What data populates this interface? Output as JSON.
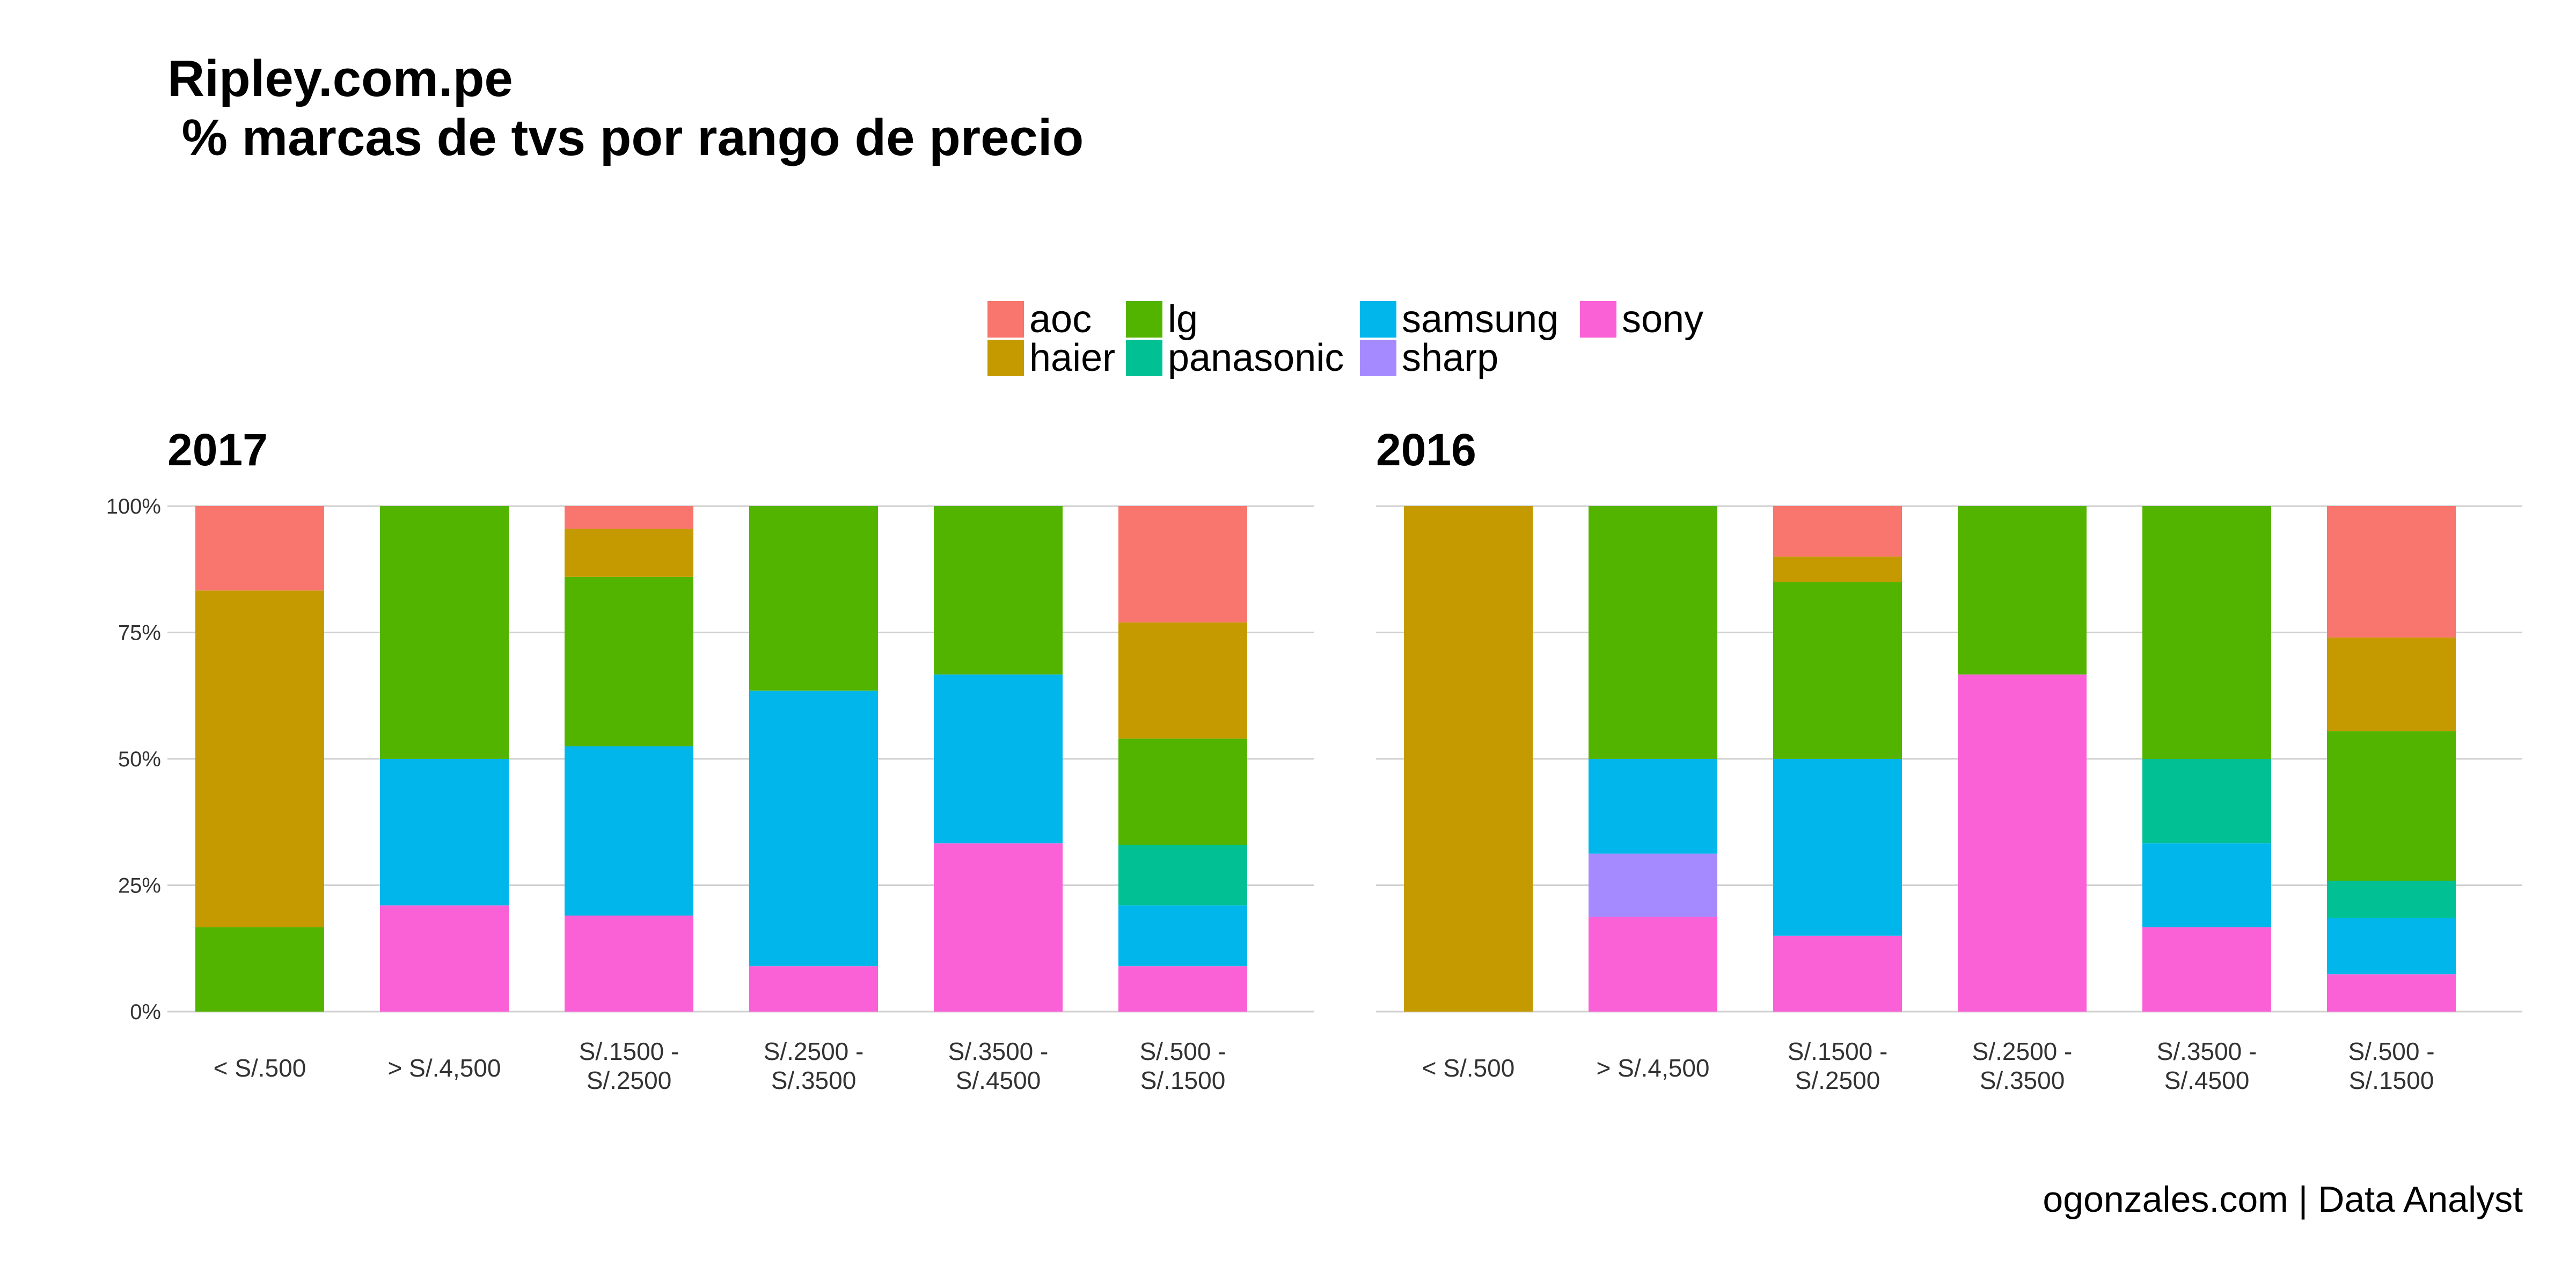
{
  "title": "Ripley.com.pe\n % marcas de tvs por rango de precio",
  "caption": "ogonzales.com | Data Analyst",
  "colors": {
    "aoc": "#F8766D",
    "haier": "#C49A00",
    "lg": "#53B400",
    "panasonic": "#00C094",
    "samsung": "#00B6EB",
    "sharp": "#A58AFF",
    "sony": "#FB61D7"
  },
  "legend": {
    "items": [
      {
        "key": "aoc",
        "label": "aoc"
      },
      {
        "key": "haier",
        "label": "haier"
      },
      {
        "key": "lg",
        "label": "lg"
      },
      {
        "key": "panasonic",
        "label": "panasonic"
      },
      {
        "key": "samsung",
        "label": "samsung"
      },
      {
        "key": "sharp",
        "label": "sharp"
      },
      {
        "key": "sony",
        "label": "sony"
      }
    ],
    "position": "top"
  },
  "chart_data": [
    {
      "type": "bar",
      "stacked": "percent",
      "facet": "2017",
      "categories": [
        "< S/.500",
        "> S/.4,500",
        "S/.1500 -\nS/.2500",
        "S/.2500 -\nS/.3500",
        "S/.3500 -\nS/.4500",
        "S/.500 -\nS/.1500"
      ],
      "y_ticks": [
        "0%",
        "25%",
        "50%",
        "75%",
        "100%"
      ],
      "ylim": [
        0,
        1
      ],
      "grid": "horizontal",
      "series": [
        {
          "name": "sony",
          "values": [
            0,
            0.21,
            0.19,
            0.09,
            0.333,
            0.09
          ]
        },
        {
          "name": "sharp",
          "values": [
            0,
            0,
            0,
            0,
            0,
            0
          ]
        },
        {
          "name": "samsung",
          "values": [
            0,
            0.29,
            0.335,
            0.545,
            0.334,
            0.12
          ]
        },
        {
          "name": "panasonic",
          "values": [
            0,
            0,
            0,
            0,
            0,
            0.12
          ]
        },
        {
          "name": "lg",
          "values": [
            0.167,
            0.5,
            0.335,
            0.365,
            0.333,
            0.21
          ]
        },
        {
          "name": "haier",
          "values": [
            0.666,
            0,
            0.095,
            0,
            0,
            0.23
          ]
        },
        {
          "name": "aoc",
          "values": [
            0.167,
            0,
            0.045,
            0,
            0,
            0.23
          ]
        }
      ]
    },
    {
      "type": "bar",
      "stacked": "percent",
      "facet": "2016",
      "categories": [
        "< S/.500",
        "> S/.4,500",
        "S/.1500 -\nS/.2500",
        "S/.2500 -\nS/.3500",
        "S/.3500 -\nS/.4500",
        "S/.500 -\nS/.1500"
      ],
      "y_ticks": [
        "0%",
        "25%",
        "50%",
        "75%",
        "100%"
      ],
      "ylim": [
        0,
        1
      ],
      "grid": "horizontal",
      "series": [
        {
          "name": "sony",
          "values": [
            0,
            0.1875,
            0.15,
            0.667,
            0.167,
            0.074
          ]
        },
        {
          "name": "sharp",
          "values": [
            0,
            0.125,
            0,
            0,
            0,
            0
          ]
        },
        {
          "name": "samsung",
          "values": [
            0,
            0.1875,
            0.35,
            0,
            0.166,
            0.111
          ]
        },
        {
          "name": "panasonic",
          "values": [
            0,
            0,
            0,
            0,
            0.167,
            0.074
          ]
        },
        {
          "name": "lg",
          "values": [
            0,
            0.5,
            0.35,
            0.333,
            0.5,
            0.296
          ]
        },
        {
          "name": "haier",
          "values": [
            1,
            0,
            0.05,
            0,
            0,
            0.185
          ]
        },
        {
          "name": "aoc",
          "values": [
            0,
            0,
            0.1,
            0,
            0,
            0.26
          ]
        }
      ]
    }
  ]
}
